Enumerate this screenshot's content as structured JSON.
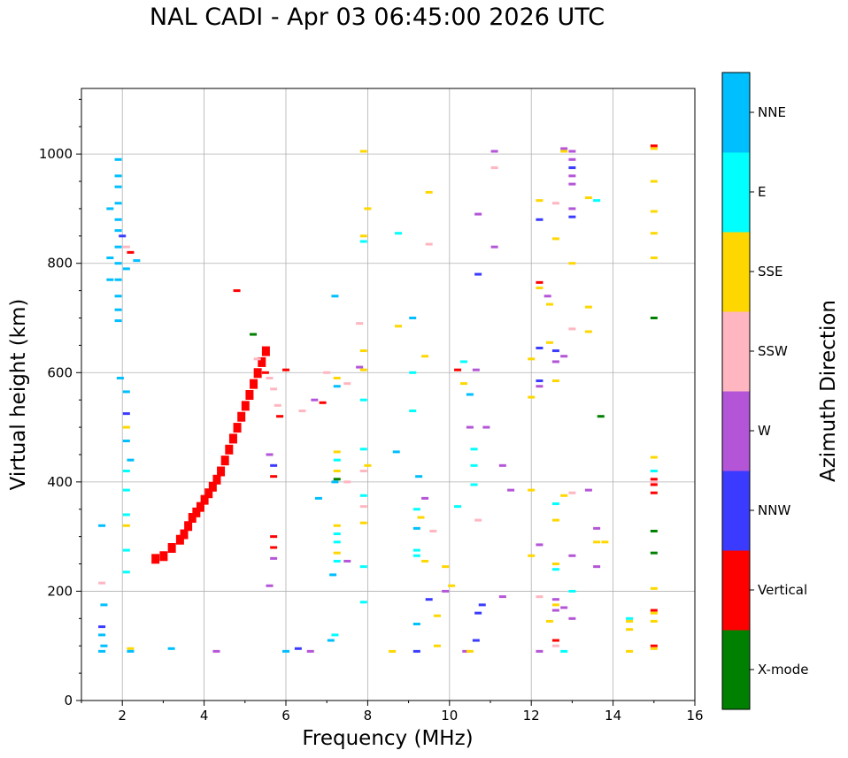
{
  "chart_data": {
    "type": "scatter",
    "title": "NAL CADI - Apr 03 06:45:00 2026 UTC",
    "xlabel": "Frequency (MHz)",
    "ylabel": "Virtual height (km)",
    "xlim": [
      1,
      16
    ],
    "ylim": [
      0,
      1120
    ],
    "xticks": [
      2,
      4,
      6,
      8,
      10,
      12,
      14,
      16
    ],
    "yticks": [
      0,
      200,
      400,
      600,
      800,
      1000
    ],
    "grid": true,
    "colorbar": {
      "title": "Azimuth Direction",
      "categories": [
        {
          "label": "X-mode",
          "color": "#008000"
        },
        {
          "label": "Vertical",
          "color": "#ff0000"
        },
        {
          "label": "NNW",
          "color": "#3b3bff"
        },
        {
          "label": "W",
          "color": "#b455d8"
        },
        {
          "label": "SSW",
          "color": "#ffb6c1"
        },
        {
          "label": "SSE",
          "color": "#ffd700"
        },
        {
          "label": "E",
          "color": "#00ffff"
        },
        {
          "label": "NNE",
          "color": "#00bfff"
        }
      ]
    },
    "trace_vertical": [
      [
        2.8,
        260
      ],
      [
        3.0,
        265
      ],
      [
        3.2,
        280
      ],
      [
        3.4,
        295
      ],
      [
        3.5,
        305
      ],
      [
        3.6,
        320
      ],
      [
        3.7,
        335
      ],
      [
        3.8,
        345
      ],
      [
        3.9,
        355
      ],
      [
        4.0,
        368
      ],
      [
        4.1,
        380
      ],
      [
        4.2,
        392
      ],
      [
        4.3,
        405
      ],
      [
        4.4,
        420
      ],
      [
        4.5,
        440
      ],
      [
        4.6,
        460
      ],
      [
        4.7,
        480
      ],
      [
        4.8,
        500
      ],
      [
        4.9,
        520
      ],
      [
        5.0,
        540
      ],
      [
        5.1,
        560
      ],
      [
        5.2,
        580
      ],
      [
        5.3,
        600
      ],
      [
        5.4,
        620
      ],
      [
        5.5,
        640
      ]
    ],
    "points": [
      [
        1.9,
        990,
        "NNE"
      ],
      [
        1.9,
        960,
        "NNE"
      ],
      [
        1.9,
        940,
        "NNE"
      ],
      [
        1.9,
        910,
        "NNE"
      ],
      [
        1.9,
        880,
        "NNE"
      ],
      [
        1.9,
        860,
        "NNE"
      ],
      [
        1.9,
        830,
        "NNE"
      ],
      [
        1.9,
        800,
        "NNE"
      ],
      [
        1.9,
        770,
        "NNE"
      ],
      [
        1.9,
        740,
        "NNE"
      ],
      [
        1.9,
        715,
        "NNE"
      ],
      [
        1.9,
        695,
        "NNE"
      ],
      [
        2.0,
        850,
        "NNW"
      ],
      [
        2.1,
        790,
        "NNE"
      ],
      [
        1.7,
        900,
        "NNE"
      ],
      [
        1.7,
        810,
        "NNE"
      ],
      [
        1.7,
        770,
        "NNE"
      ],
      [
        2.35,
        805,
        "NNE"
      ],
      [
        2.1,
        830,
        "SSW"
      ],
      [
        2.2,
        820,
        "Vertical"
      ],
      [
        1.95,
        590,
        "NNE"
      ],
      [
        2.1,
        565,
        "NNE"
      ],
      [
        2.1,
        525,
        "NNW"
      ],
      [
        2.1,
        500,
        "SSE"
      ],
      [
        2.1,
        475,
        "NNE"
      ],
      [
        2.2,
        440,
        "NNE"
      ],
      [
        2.1,
        420,
        "E"
      ],
      [
        2.1,
        385,
        "E"
      ],
      [
        2.1,
        340,
        "E"
      ],
      [
        2.1,
        320,
        "SSE"
      ],
      [
        2.1,
        275,
        "E"
      ],
      [
        2.1,
        235,
        "E"
      ],
      [
        1.5,
        320,
        "NNE"
      ],
      [
        1.5,
        215,
        "SSW"
      ],
      [
        1.55,
        175,
        "NNE"
      ],
      [
        1.5,
        135,
        "NNW"
      ],
      [
        1.5,
        120,
        "NNE"
      ],
      [
        1.55,
        100,
        "NNE"
      ],
      [
        1.5,
        90,
        "NNE"
      ],
      [
        2.2,
        95,
        "SSE"
      ],
      [
        2.2,
        90,
        "NNE"
      ],
      [
        3.2,
        95,
        "NNE"
      ],
      [
        4.3,
        90,
        "W"
      ],
      [
        4.8,
        750,
        "Vertical"
      ],
      [
        5.2,
        670,
        "X-mode"
      ],
      [
        5.3,
        625,
        "SSW"
      ],
      [
        5.5,
        600,
        "Vertical"
      ],
      [
        5.6,
        590,
        "SSW"
      ],
      [
        5.7,
        570,
        "SSW"
      ],
      [
        5.8,
        540,
        "SSW"
      ],
      [
        5.85,
        520,
        "Vertical"
      ],
      [
        6.0,
        605,
        "Vertical"
      ],
      [
        5.6,
        450,
        "W"
      ],
      [
        5.7,
        430,
        "NNW"
      ],
      [
        5.7,
        410,
        "Vertical"
      ],
      [
        5.7,
        300,
        "Vertical"
      ],
      [
        5.7,
        280,
        "Vertical"
      ],
      [
        5.7,
        260,
        "W"
      ],
      [
        5.6,
        210,
        "W"
      ],
      [
        6.0,
        90,
        "NNE"
      ],
      [
        6.3,
        95,
        "NNW"
      ],
      [
        6.6,
        90,
        "W"
      ],
      [
        6.4,
        530,
        "SSW"
      ],
      [
        6.7,
        550,
        "W"
      ],
      [
        6.9,
        545,
        "Vertical"
      ],
      [
        6.8,
        370,
        "NNE"
      ],
      [
        7.0,
        600,
        "SSW"
      ],
      [
        7.2,
        740,
        "NNE"
      ],
      [
        7.25,
        590,
        "SSE"
      ],
      [
        7.25,
        575,
        "NNE"
      ],
      [
        7.25,
        455,
        "SSE"
      ],
      [
        7.25,
        440,
        "E"
      ],
      [
        7.25,
        420,
        "SSE"
      ],
      [
        7.25,
        405,
        "X-mode"
      ],
      [
        7.2,
        400,
        "NNE"
      ],
      [
        7.25,
        320,
        "SSE"
      ],
      [
        7.25,
        305,
        "E"
      ],
      [
        7.25,
        290,
        "E"
      ],
      [
        7.25,
        270,
        "SSE"
      ],
      [
        7.25,
        255,
        "E"
      ],
      [
        7.15,
        230,
        "NNE"
      ],
      [
        7.2,
        120,
        "E"
      ],
      [
        7.1,
        110,
        "NNE"
      ],
      [
        7.5,
        580,
        "SSW"
      ],
      [
        7.5,
        400,
        "SSW"
      ],
      [
        7.5,
        255,
        "W"
      ],
      [
        7.9,
        1005,
        "SSE"
      ],
      [
        8.0,
        900,
        "SSE"
      ],
      [
        7.9,
        850,
        "SSE"
      ],
      [
        7.9,
        840,
        "E"
      ],
      [
        7.8,
        690,
        "SSW"
      ],
      [
        7.9,
        640,
        "SSE"
      ],
      [
        7.8,
        610,
        "W"
      ],
      [
        7.9,
        605,
        "SSE"
      ],
      [
        7.9,
        550,
        "E"
      ],
      [
        7.9,
        460,
        "E"
      ],
      [
        8.0,
        430,
        "SSE"
      ],
      [
        7.9,
        420,
        "SSW"
      ],
      [
        7.9,
        375,
        "E"
      ],
      [
        7.9,
        355,
        "SSW"
      ],
      [
        7.9,
        325,
        "SSE"
      ],
      [
        7.9,
        245,
        "E"
      ],
      [
        7.9,
        180,
        "E"
      ],
      [
        8.6,
        90,
        "SSE"
      ],
      [
        8.75,
        855,
        "E"
      ],
      [
        8.75,
        685,
        "SSE"
      ],
      [
        8.7,
        455,
        "NNE"
      ],
      [
        9.1,
        700,
        "NNE"
      ],
      [
        9.1,
        600,
        "E"
      ],
      [
        9.1,
        530,
        "E"
      ],
      [
        9.25,
        410,
        "NNE"
      ],
      [
        9.2,
        350,
        "E"
      ],
      [
        9.3,
        335,
        "SSE"
      ],
      [
        9.2,
        315,
        "NNE"
      ],
      [
        9.2,
        275,
        "E"
      ],
      [
        9.2,
        265,
        "E"
      ],
      [
        9.2,
        90,
        "NNW"
      ],
      [
        9.2,
        140,
        "NNE"
      ],
      [
        9.5,
        930,
        "SSE"
      ],
      [
        9.5,
        835,
        "SSW"
      ],
      [
        9.4,
        630,
        "SSE"
      ],
      [
        9.4,
        370,
        "W"
      ],
      [
        9.6,
        310,
        "SSW"
      ],
      [
        9.4,
        255,
        "SSE"
      ],
      [
        9.5,
        185,
        "NNW"
      ],
      [
        9.7,
        155,
        "SSE"
      ],
      [
        9.7,
        100,
        "SSE"
      ],
      [
        9.9,
        245,
        "SSE"
      ],
      [
        9.9,
        200,
        "W"
      ],
      [
        10.05,
        210,
        "SSE"
      ],
      [
        10.2,
        605,
        "Vertical"
      ],
      [
        10.35,
        620,
        "E"
      ],
      [
        10.35,
        580,
        "SSE"
      ],
      [
        10.5,
        560,
        "NNE"
      ],
      [
        10.5,
        500,
        "W"
      ],
      [
        10.65,
        605,
        "W"
      ],
      [
        10.7,
        890,
        "W"
      ],
      [
        10.7,
        780,
        "NNW"
      ],
      [
        10.6,
        460,
        "E"
      ],
      [
        10.6,
        430,
        "E"
      ],
      [
        10.6,
        395,
        "E"
      ],
      [
        10.7,
        330,
        "SSW"
      ],
      [
        10.2,
        355,
        "E"
      ],
      [
        10.8,
        175,
        "NNW"
      ],
      [
        10.7,
        160,
        "NNW"
      ],
      [
        10.65,
        110,
        "NNW"
      ],
      [
        10.4,
        90,
        "W"
      ],
      [
        10.5,
        90,
        "SSE"
      ],
      [
        10.9,
        500,
        "W"
      ],
      [
        11.1,
        1005,
        "W"
      ],
      [
        11.1,
        975,
        "SSW"
      ],
      [
        11.1,
        830,
        "W"
      ],
      [
        11.3,
        430,
        "W"
      ],
      [
        11.5,
        385,
        "W"
      ],
      [
        11.3,
        190,
        "W"
      ],
      [
        12.2,
        915,
        "SSE"
      ],
      [
        12.2,
        880,
        "NNW"
      ],
      [
        12.2,
        765,
        "Vertical"
      ],
      [
        12.2,
        755,
        "SSE"
      ],
      [
        12.4,
        740,
        "W"
      ],
      [
        12.45,
        725,
        "SSE"
      ],
      [
        12.0,
        625,
        "SSE"
      ],
      [
        12.2,
        645,
        "NNW"
      ],
      [
        12.0,
        555,
        "SSE"
      ],
      [
        12.2,
        585,
        "NNW"
      ],
      [
        12.2,
        575,
        "W"
      ],
      [
        12.0,
        385,
        "SSE"
      ],
      [
        12.0,
        265,
        "SSE"
      ],
      [
        12.2,
        285,
        "W"
      ],
      [
        12.2,
        190,
        "SSW"
      ],
      [
        12.2,
        90,
        "W"
      ],
      [
        12.45,
        145,
        "SSE"
      ],
      [
        12.6,
        910,
        "SSW"
      ],
      [
        12.6,
        845,
        "SSE"
      ],
      [
        12.45,
        655,
        "SSE"
      ],
      [
        12.6,
        640,
        "NNW"
      ],
      [
        12.6,
        620,
        "W"
      ],
      [
        12.6,
        585,
        "SSE"
      ],
      [
        12.6,
        360,
        "E"
      ],
      [
        12.6,
        330,
        "SSE"
      ],
      [
        12.6,
        250,
        "SSE"
      ],
      [
        12.6,
        240,
        "E"
      ],
      [
        12.6,
        185,
        "W"
      ],
      [
        12.6,
        175,
        "SSE"
      ],
      [
        12.6,
        165,
        "W"
      ],
      [
        12.6,
        110,
        "Vertical"
      ],
      [
        12.6,
        100,
        "SSW"
      ],
      [
        12.8,
        1010,
        "W"
      ],
      [
        12.8,
        1005,
        "SSE"
      ],
      [
        12.8,
        90,
        "E"
      ],
      [
        12.8,
        375,
        "SSE"
      ],
      [
        12.8,
        170,
        "W"
      ],
      [
        12.8,
        630,
        "W"
      ],
      [
        13.0,
        1005,
        "W"
      ],
      [
        13.0,
        990,
        "W"
      ],
      [
        13.0,
        975,
        "NNW"
      ],
      [
        13.0,
        960,
        "W"
      ],
      [
        13.0,
        945,
        "W"
      ],
      [
        13.0,
        900,
        "W"
      ],
      [
        13.0,
        885,
        "NNW"
      ],
      [
        13.0,
        800,
        "SSE"
      ],
      [
        13.0,
        680,
        "SSW"
      ],
      [
        13.0,
        380,
        "SSW"
      ],
      [
        13.0,
        265,
        "W"
      ],
      [
        13.0,
        200,
        "E"
      ],
      [
        13.0,
        150,
        "W"
      ],
      [
        13.4,
        920,
        "SSE"
      ],
      [
        13.6,
        915,
        "E"
      ],
      [
        13.4,
        720,
        "SSE"
      ],
      [
        13.4,
        675,
        "SSE"
      ],
      [
        13.7,
        520,
        "X-mode"
      ],
      [
        13.4,
        385,
        "W"
      ],
      [
        13.6,
        315,
        "W"
      ],
      [
        13.6,
        290,
        "SSE"
      ],
      [
        13.8,
        290,
        "SSE"
      ],
      [
        13.6,
        245,
        "W"
      ],
      [
        14.4,
        150,
        "E"
      ],
      [
        14.4,
        145,
        "SSE"
      ],
      [
        14.4,
        130,
        "SSE"
      ],
      [
        14.4,
        90,
        "SSE"
      ],
      [
        15.0,
        1015,
        "Vertical"
      ],
      [
        15.0,
        1010,
        "SSE"
      ],
      [
        15.0,
        950,
        "SSE"
      ],
      [
        15.0,
        895,
        "SSE"
      ],
      [
        15.0,
        855,
        "SSE"
      ],
      [
        15.0,
        810,
        "SSE"
      ],
      [
        15.0,
        700,
        "X-mode"
      ],
      [
        15.0,
        445,
        "SSE"
      ],
      [
        15.0,
        420,
        "E"
      ],
      [
        15.0,
        405,
        "Vertical"
      ],
      [
        15.0,
        400,
        "SSW"
      ],
      [
        15.0,
        395,
        "Vertical"
      ],
      [
        15.0,
        380,
        "Vertical"
      ],
      [
        15.0,
        310,
        "X-mode"
      ],
      [
        15.0,
        270,
        "X-mode"
      ],
      [
        15.0,
        205,
        "SSE"
      ],
      [
        15.0,
        165,
        "Vertical"
      ],
      [
        15.0,
        160,
        "SSE"
      ],
      [
        15.0,
        145,
        "SSE"
      ],
      [
        15.0,
        100,
        "Vertical"
      ],
      [
        15.0,
        95,
        "SSE"
      ]
    ]
  }
}
